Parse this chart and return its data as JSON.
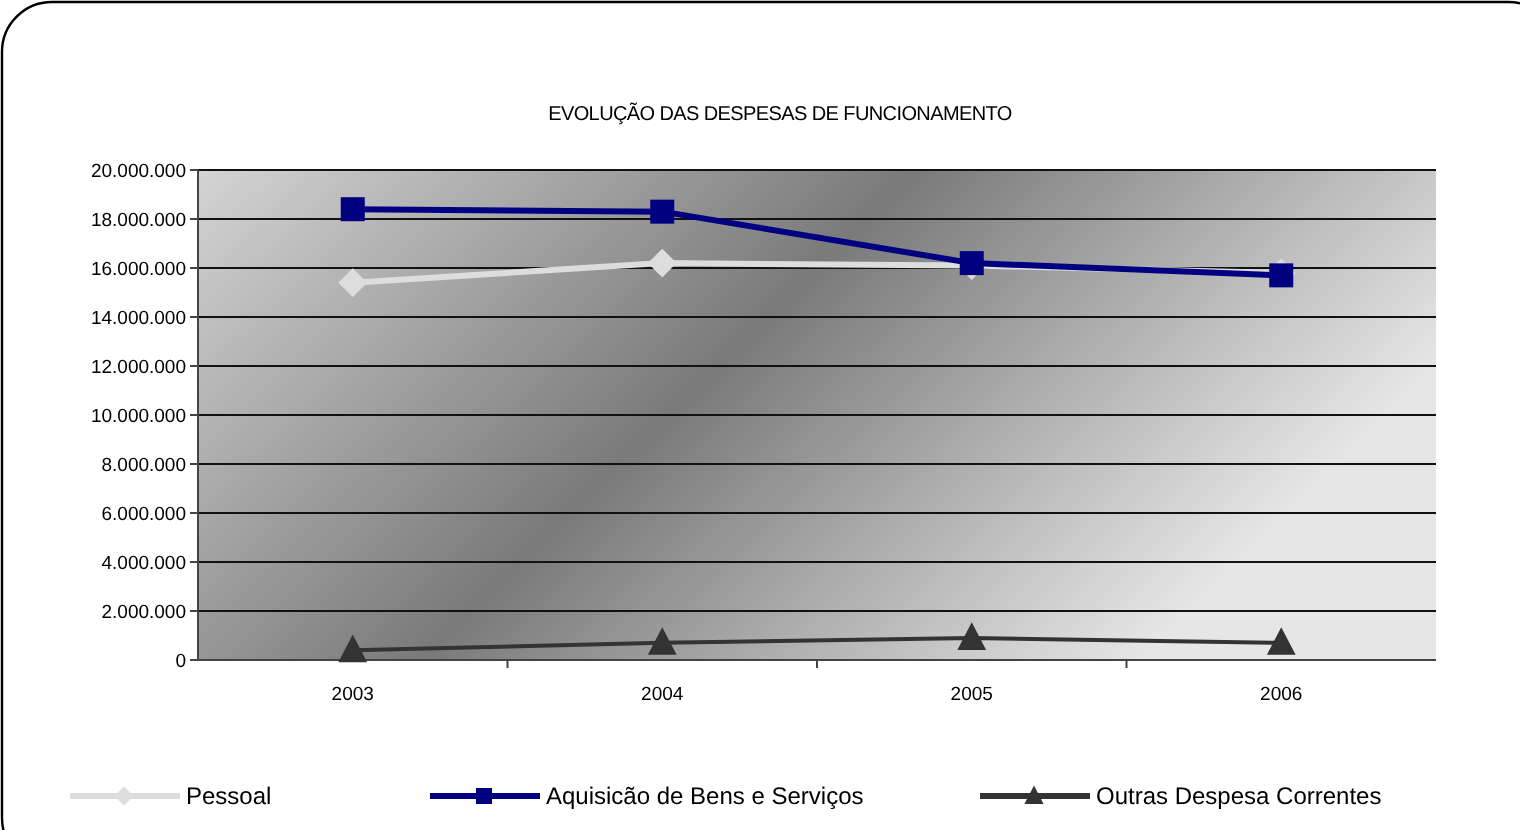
{
  "chart_data": {
    "type": "line",
    "title": "EVOLUÇÃO DAS DESPESAS DE FUNCIONAMENTO",
    "categories": [
      "2003",
      "2004",
      "2005",
      "2006"
    ],
    "series": [
      {
        "name": "Pessoal",
        "color": "#dddddd",
        "marker": "diamond",
        "values": [
          15400000,
          16200000,
          16100000,
          15800000
        ]
      },
      {
        "name": "Aquisicão de Bens e Serviços",
        "color": "#000080",
        "marker": "square",
        "values": [
          18400000,
          18300000,
          16200000,
          15700000
        ]
      },
      {
        "name": "Outras Despesa Correntes",
        "color": "#333333",
        "marker": "triangle",
        "values": [
          400000,
          700000,
          900000,
          700000
        ]
      }
    ],
    "ylim": [
      0,
      20000000
    ],
    "yticks": [
      {
        "value": 0,
        "label": "0"
      },
      {
        "value": 2000000,
        "label": "2.000.000"
      },
      {
        "value": 4000000,
        "label": "4.000.000"
      },
      {
        "value": 6000000,
        "label": "6.000.000"
      },
      {
        "value": 8000000,
        "label": "8.000.000"
      },
      {
        "value": 10000000,
        "label": "10.000.000"
      },
      {
        "value": 12000000,
        "label": "12.000.000"
      },
      {
        "value": 14000000,
        "label": "14.000.000"
      },
      {
        "value": 16000000,
        "label": "16.000.000"
      },
      {
        "value": 18000000,
        "label": "18.000.000"
      },
      {
        "value": 20000000,
        "label": "20.000.000"
      }
    ],
    "grid": "y",
    "legend": "bottom"
  }
}
